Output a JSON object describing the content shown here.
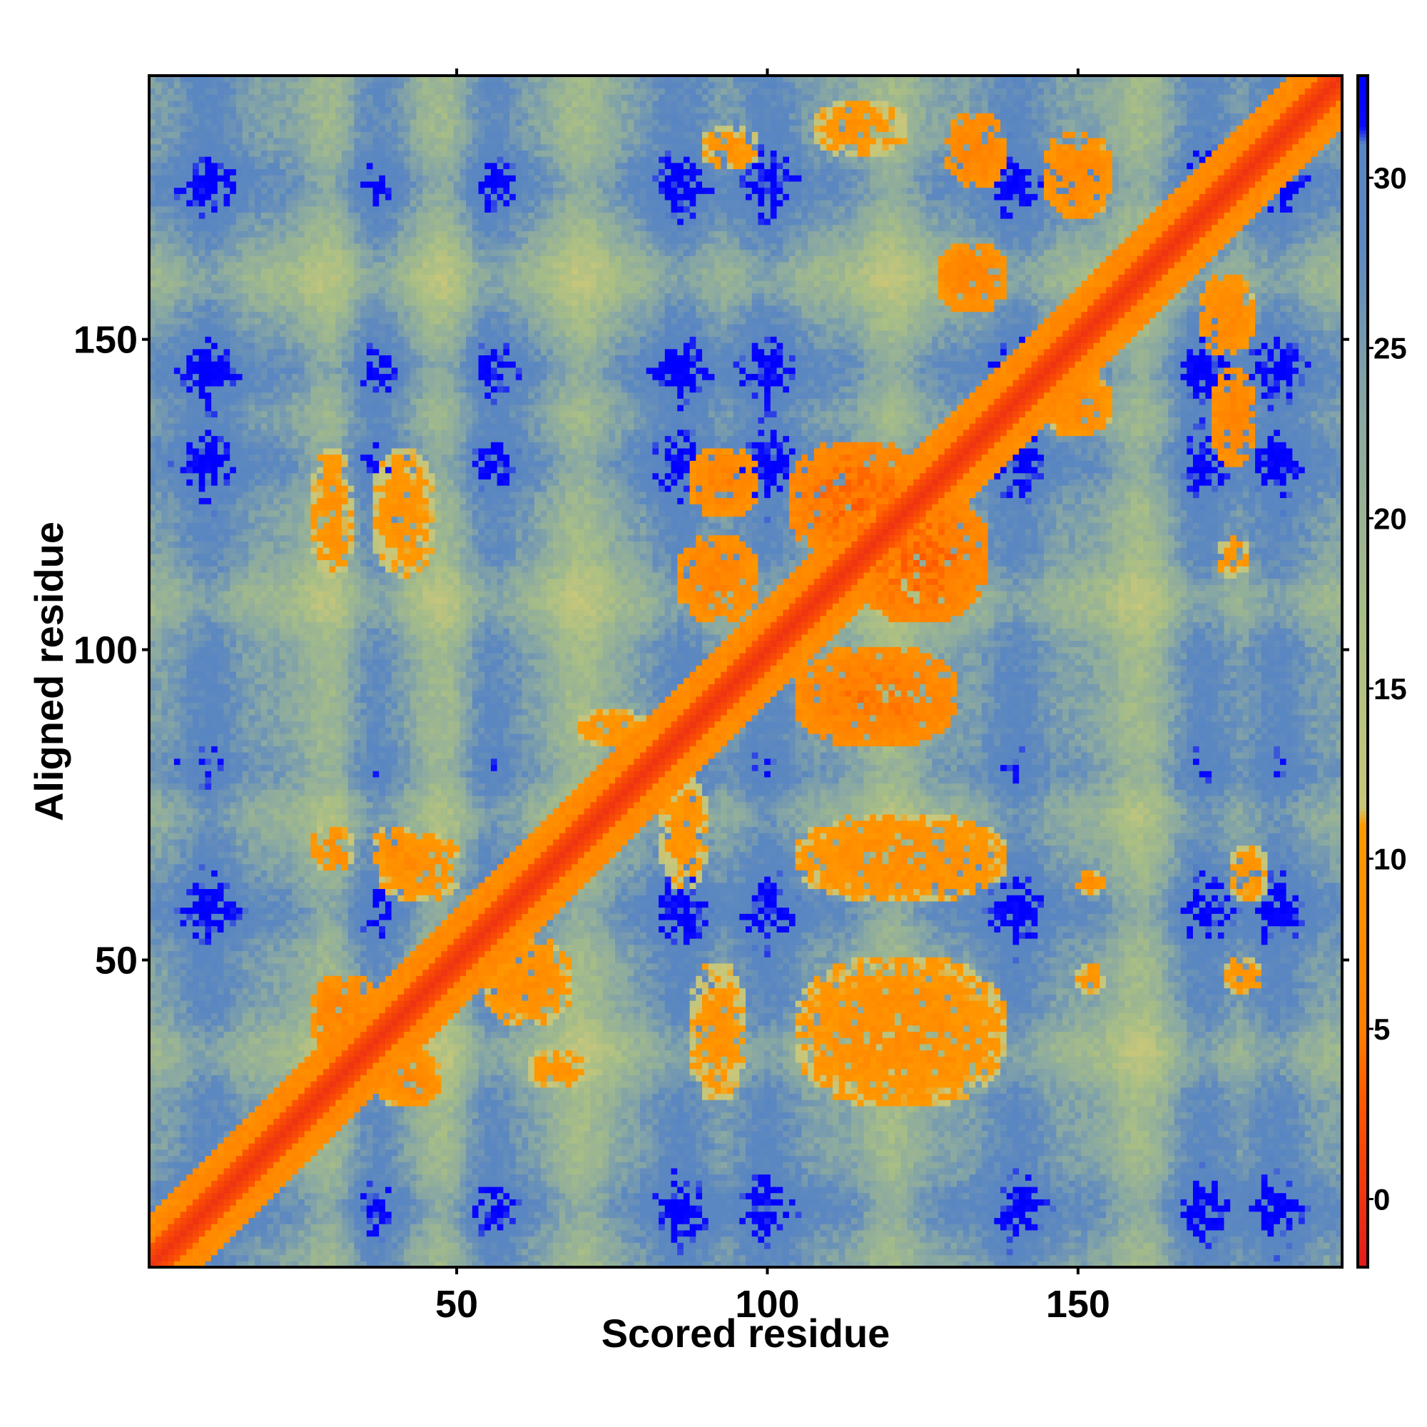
{
  "chart_data": {
    "type": "heatmap",
    "title": "",
    "xlabel": "Scored residue",
    "ylabel": "Aligned residue",
    "xlim": [
      1,
      192
    ],
    "ylim": [
      1,
      192
    ],
    "x_ticks": [
      50,
      100,
      150
    ],
    "y_ticks": [
      50,
      100,
      150
    ],
    "colorbar": {
      "range": [
        -2,
        33
      ],
      "ticks": [
        0,
        5,
        10,
        15,
        20,
        25,
        30
      ],
      "stops": [
        {
          "value": -2,
          "color": "#e41a1c"
        },
        {
          "value": 3,
          "color": "#ff5a00"
        },
        {
          "value": 5,
          "color": "#ff7f00"
        },
        {
          "value": 11,
          "color": "#ff9a00"
        },
        {
          "value": 11.5,
          "color": "#c9c77a"
        },
        {
          "value": 17,
          "color": "#a8be86"
        },
        {
          "value": 23,
          "color": "#8aa9a2"
        },
        {
          "value": 28,
          "color": "#5d88c0"
        },
        {
          "value": 31,
          "color": "#5886c2"
        },
        {
          "value": 31.5,
          "color": "#0a0aff"
        },
        {
          "value": 33,
          "color": "#0000ff"
        }
      ]
    },
    "background_value": 24,
    "diagonal": {
      "core_value": 0,
      "core_halfwidth": 3,
      "edge_value": 8,
      "edge_halfwidth": 8
    },
    "blocks": [
      {
        "x": [
          27,
          37
        ],
        "y": [
          35,
          47
        ],
        "value": 6
      },
      {
        "x": [
          37,
          47
        ],
        "y": [
          27,
          35
        ],
        "value": 7
      },
      {
        "x": [
          38,
          50
        ],
        "y": [
          60,
          70
        ],
        "value": 8
      },
      {
        "x": [
          27,
          33
        ],
        "y": [
          65,
          71
        ],
        "value": 8
      },
      {
        "x": [
          37,
          43
        ],
        "y": [
          65,
          71
        ],
        "value": 8
      },
      {
        "x": [
          55,
          68
        ],
        "y": [
          40,
          53
        ],
        "value": 8
      },
      {
        "x": [
          27,
          33
        ],
        "y": [
          112,
          132
        ],
        "value": 9
      },
      {
        "x": [
          37,
          46
        ],
        "y": [
          112,
          132
        ],
        "value": 9
      },
      {
        "x": [
          62,
          70
        ],
        "y": [
          30,
          35
        ],
        "value": 9
      },
      {
        "x": [
          70,
          80
        ],
        "y": [
          85,
          90
        ],
        "value": 9
      },
      {
        "x": [
          83,
          90
        ],
        "y": [
          62,
          80
        ],
        "value": 9
      },
      {
        "x": [
          86,
          98
        ],
        "y": [
          105,
          118
        ],
        "value": 6
      },
      {
        "x": [
          88,
          98
        ],
        "y": [
          122,
          132
        ],
        "value": 6
      },
      {
        "x": [
          104,
          125
        ],
        "y": [
          115,
          133
        ],
        "value": 4
      },
      {
        "x": [
          114,
          135
        ],
        "y": [
          105,
          125
        ],
        "value": 4
      },
      {
        "x": [
          105,
          130
        ],
        "y": [
          85,
          100
        ],
        "value": 5
      },
      {
        "x": [
          105,
          138
        ],
        "y": [
          60,
          73
        ],
        "value": 8
      },
      {
        "x": [
          105,
          138
        ],
        "y": [
          27,
          50
        ],
        "value": 8
      },
      {
        "x": [
          88,
          96
        ],
        "y": [
          28,
          49
        ],
        "value": 9
      },
      {
        "x": [
          128,
          138
        ],
        "y": [
          155,
          165
        ],
        "value": 6
      },
      {
        "x": [
          108,
          122
        ],
        "y": [
          180,
          188
        ],
        "value": 9
      },
      {
        "x": [
          129,
          138
        ],
        "y": [
          175,
          186
        ],
        "value": 6
      },
      {
        "x": [
          145,
          155
        ],
        "y": [
          170,
          183
        ],
        "value": 7
      },
      {
        "x": [
          145,
          155
        ],
        "y": [
          135,
          144
        ],
        "value": 7
      },
      {
        "x": [
          172,
          178
        ],
        "y": [
          130,
          145
        ],
        "value": 6
      },
      {
        "x": [
          170,
          178
        ],
        "y": [
          148,
          160
        ],
        "value": 7
      },
      {
        "x": [
          150,
          154
        ],
        "y": [
          61,
          64
        ],
        "value": 8
      },
      {
        "x": [
          175,
          180
        ],
        "y": [
          60,
          68
        ],
        "value": 9
      },
      {
        "x": [
          174,
          179
        ],
        "y": [
          45,
          50
        ],
        "value": 9
      },
      {
        "x": [
          150,
          154
        ],
        "y": [
          45,
          49
        ],
        "value": 9
      },
      {
        "x": [
          173,
          177
        ],
        "y": [
          112,
          118
        ],
        "value": 9
      },
      {
        "x": [
          90,
          98
        ],
        "y": [
          178,
          184
        ],
        "value": 9
      }
    ],
    "bands_low_x": [
      10,
      36,
      55,
      86,
      100,
      140,
      170,
      182
    ],
    "bands_low_y": [
      10,
      58,
      78,
      130,
      145,
      175
    ],
    "bands_high_x": [
      30,
      48,
      70,
      120,
      160
    ],
    "bands_high_y": [
      35,
      75,
      108,
      160
    ],
    "outliers": [
      {
        "x": 5,
        "y": 82,
        "value": 32
      }
    ]
  }
}
